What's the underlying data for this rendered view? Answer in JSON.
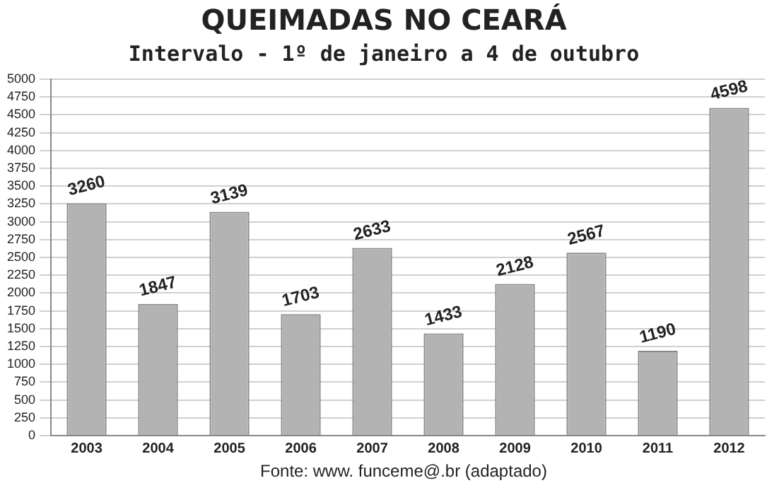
{
  "chart_data": {
    "type": "bar",
    "title": "QUEIMADAS NO CEARÁ",
    "subtitle": "Intervalo - 1º de janeiro a 4 de outubro",
    "categories": [
      "2003",
      "2004",
      "2005",
      "2006",
      "2007",
      "2008",
      "2009",
      "2010",
      "2011",
      "2012"
    ],
    "values": [
      3260,
      1847,
      3139,
      1703,
      2633,
      1433,
      2128,
      2567,
      1190,
      4598
    ],
    "color": "#b3b3b3",
    "ylim": [
      0,
      5000
    ],
    "yticks": [
      0,
      250,
      500,
      750,
      1000,
      1250,
      1500,
      1750,
      2000,
      2250,
      2500,
      2750,
      3000,
      3250,
      3500,
      3750,
      4000,
      4250,
      4500,
      4750,
      5000
    ],
    "grid": "y",
    "data_labels": true,
    "annotations": [
      "Fonte: www. funceme@.br (adaptado)"
    ]
  }
}
